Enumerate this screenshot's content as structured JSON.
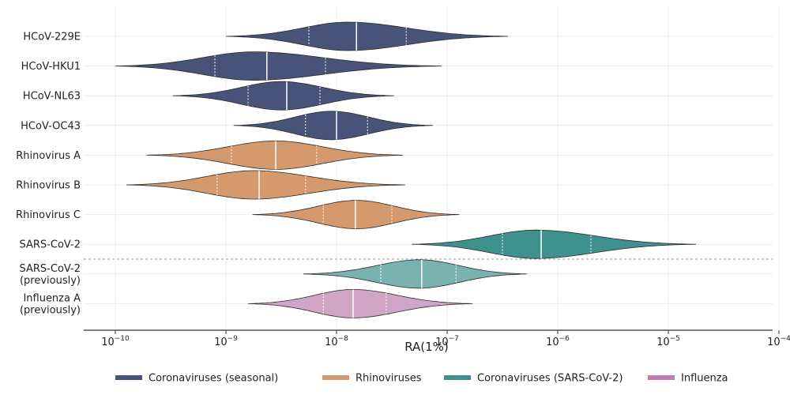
{
  "chart_data": {
    "type": "violin",
    "title": "",
    "xlabel": "RA(1%)",
    "ylabel": "",
    "x_scale": "log10",
    "xlim_log10": [
      -10.4,
      -4
    ],
    "x_tick_labels": [
      {
        "base": "10",
        "exp": "−10"
      },
      {
        "base": "10",
        "exp": "−9"
      },
      {
        "base": "10",
        "exp": "−8"
      },
      {
        "base": "10",
        "exp": "−7"
      },
      {
        "base": "10",
        "exp": "−6"
      },
      {
        "base": "10",
        "exp": "−5"
      },
      {
        "base": "10",
        "exp": "−4"
      }
    ],
    "x_tick_log10": [
      -10,
      -9,
      -8,
      -7,
      -6,
      -5,
      -4
    ],
    "groups": [
      {
        "key": "seasonal",
        "name": "Coronaviruses (seasonal)",
        "color": "#48537a"
      },
      {
        "key": "rhino",
        "name": "Rhinoviruses",
        "color": "#d4996c"
      },
      {
        "key": "sars",
        "name": "Coronaviruses (SARS-CoV-2)",
        "color": "#3f918d"
      },
      {
        "key": "flu",
        "name": "Influenza",
        "color": "#bd7fae"
      }
    ],
    "series": [
      {
        "label": [
          "HCoV-229E"
        ],
        "group": "seasonal",
        "min": -9.0,
        "q1": -8.25,
        "median": -7.82,
        "q3": -7.37,
        "max": -6.45,
        "mode": -7.9
      },
      {
        "label": [
          "HCoV-HKU1"
        ],
        "group": "seasonal",
        "min": -10.0,
        "q1": -9.1,
        "median": -8.63,
        "q3": -8.1,
        "max": -7.05,
        "mode": -8.75
      },
      {
        "label": [
          "HCoV-NL63"
        ],
        "group": "seasonal",
        "min": -9.48,
        "q1": -8.8,
        "median": -8.45,
        "q3": -8.15,
        "max": -7.48,
        "mode": -8.5
      },
      {
        "label": [
          "HCoV-OC43"
        ],
        "group": "seasonal",
        "min": -8.93,
        "q1": -8.28,
        "median": -8.0,
        "q3": -7.72,
        "max": -7.13,
        "mode": -8.05
      },
      {
        "label": [
          "Rhinovirus A"
        ],
        "group": "rhino",
        "min": -9.72,
        "q1": -8.95,
        "median": -8.55,
        "q3": -8.18,
        "max": -7.4,
        "mode": -8.55
      },
      {
        "label": [
          "Rhinovirus B"
        ],
        "group": "rhino",
        "min": -9.9,
        "q1": -9.08,
        "median": -8.7,
        "q3": -8.28,
        "max": -7.38,
        "mode": -8.75
      },
      {
        "label": [
          "Rhinovirus C"
        ],
        "group": "rhino",
        "min": -8.76,
        "q1": -8.12,
        "median": -7.83,
        "q3": -7.5,
        "max": -6.89,
        "mode": -7.82
      },
      {
        "label": [
          "SARS-CoV-2"
        ],
        "group": "sars",
        "min": -7.32,
        "q1": -6.5,
        "median": -6.15,
        "q3": -5.7,
        "max": -4.75,
        "mode": -6.2
      },
      {
        "label": [
          "SARS-CoV-2",
          "(previously)"
        ],
        "group": "sars",
        "min": -8.3,
        "q1": -7.6,
        "median": -7.23,
        "q3": -6.92,
        "max": -6.28,
        "mode": -7.25
      },
      {
        "label": [
          "Influenza A",
          "(previously)"
        ],
        "group": "flu",
        "min": -8.8,
        "q1": -8.12,
        "median": -7.85,
        "q3": -7.55,
        "max": -6.77,
        "mode": -7.85
      }
    ],
    "separator_after_index": 7,
    "grid": true,
    "legend_position": "bottom-center"
  }
}
